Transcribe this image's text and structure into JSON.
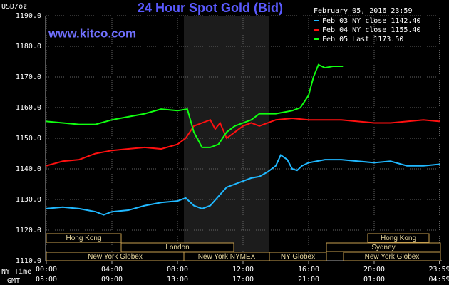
{
  "chart_data": {
    "type": "line",
    "title": "24 Hour Spot Gold (Bid)",
    "site": "www.kitco.com",
    "y_label": "USD/oz",
    "timestamp": "February 05, 2016 23:59",
    "x_row_labels": [
      "NY Time",
      "GMT"
    ],
    "xlim": [
      0,
      24
    ],
    "xticks": [
      {
        "value": 0,
        "label": "00:00"
      },
      {
        "value": 4,
        "label": "04:00"
      },
      {
        "value": 8,
        "label": "08:00"
      },
      {
        "value": 12,
        "label": "12:00"
      },
      {
        "value": 16,
        "label": "16:00"
      },
      {
        "value": 20,
        "label": "20:00"
      },
      {
        "value": 23.98,
        "label": "23:59"
      }
    ],
    "gmt_ticks": [
      "05:00",
      "09:00",
      "13:00",
      "17:00",
      "21:00",
      "01:00",
      "04:59"
    ],
    "ylim": [
      1110,
      1190
    ],
    "yticks": [
      {
        "value": 1110,
        "label": "1110.0"
      },
      {
        "value": 1120,
        "label": "1120.0"
      },
      {
        "value": 1130,
        "label": "1130.0"
      },
      {
        "value": 1140,
        "label": "1140.0"
      },
      {
        "value": 1150,
        "label": "1150.0"
      },
      {
        "value": 1160,
        "label": "1160.0"
      },
      {
        "value": 1170,
        "label": "1170.0"
      },
      {
        "value": 1180,
        "label": "1180.0"
      },
      {
        "value": 1190,
        "label": "1190.0"
      }
    ],
    "grid": true,
    "sessions": [
      "Hong Kong",
      "Hong Kong",
      "London",
      "Sydney",
      "New York Globex",
      "New York NYMEX",
      "NY Globex",
      "New York Globex"
    ],
    "series": [
      {
        "name": "Feb 03 NY close 1142.40",
        "color": "#20b8ff",
        "x": [
          0,
          1,
          2,
          3,
          3.5,
          4,
          5,
          6,
          7,
          8,
          8.5,
          9,
          9.5,
          10,
          10.5,
          11,
          11.5,
          12,
          12.5,
          13,
          13.5,
          14,
          14.3,
          14.7,
          15,
          15.3,
          15.6,
          16,
          16.5,
          17,
          18,
          19,
          20,
          21,
          22,
          23,
          24
        ],
        "values": [
          1127,
          1127.5,
          1127,
          1126,
          1125,
          1126,
          1126.5,
          1128,
          1129,
          1129.5,
          1130.5,
          1128,
          1127,
          1128,
          1131,
          1134,
          1135,
          1136,
          1137,
          1137.5,
          1139,
          1141,
          1144.5,
          1143,
          1140,
          1139.5,
          1141,
          1142,
          1142.5,
          1143,
          1143,
          1142.5,
          1142,
          1142.5,
          1141,
          1141,
          1141.5
        ]
      },
      {
        "name": "Feb 04 NY close 1155.40",
        "color": "#ff1010",
        "x": [
          0,
          1,
          2,
          3,
          4,
          5,
          6,
          7,
          8,
          8.5,
          9,
          9.5,
          10,
          10.3,
          10.6,
          11,
          11.5,
          12,
          12.5,
          13,
          14,
          15,
          16,
          17,
          18,
          19,
          20,
          21,
          22,
          23,
          24
        ],
        "values": [
          1141,
          1142.5,
          1143,
          1145,
          1146,
          1146.5,
          1147,
          1146.5,
          1148,
          1150,
          1154,
          1155,
          1156,
          1153,
          1155,
          1150,
          1152,
          1154,
          1155,
          1154,
          1156,
          1156.5,
          1156,
          1156,
          1156,
          1155.5,
          1155,
          1155,
          1155.5,
          1156,
          1155.5
        ]
      },
      {
        "name": "Feb 05 Last 1173.50",
        "color": "#10ff10",
        "x": [
          0,
          1,
          2,
          3,
          4,
          5,
          6,
          7,
          8,
          8.6,
          9,
          9.5,
          10,
          10.5,
          11,
          11.5,
          12,
          12.5,
          13,
          14,
          15,
          15.5,
          16,
          16.3,
          16.6,
          17,
          17.5,
          18.1
        ],
        "values": [
          1155.5,
          1155,
          1154.5,
          1154.5,
          1156,
          1157,
          1158,
          1159.5,
          1159,
          1159.5,
          1152,
          1147,
          1147,
          1148,
          1152,
          1154,
          1155,
          1156,
          1158,
          1158,
          1159,
          1160,
          1164,
          1170,
          1174,
          1173,
          1173.5,
          1173.5
        ]
      }
    ]
  }
}
